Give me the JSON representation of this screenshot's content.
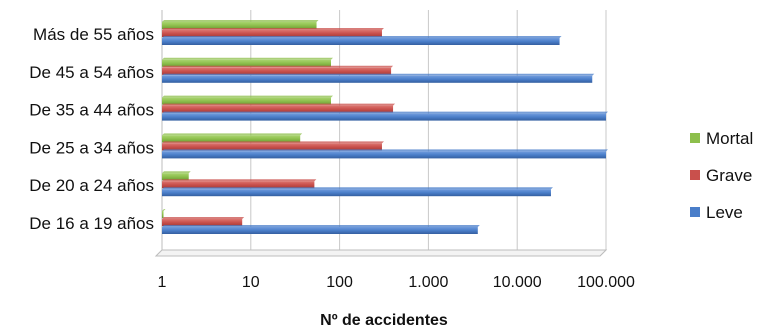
{
  "chart_data": {
    "type": "bar",
    "orientation": "horizontal",
    "x_scale": "log",
    "xlabel": "Nº de accidentes",
    "xlim": [
      1,
      100000
    ],
    "x_ticks": [
      {
        "value": 1,
        "label": "1"
      },
      {
        "value": 10,
        "label": "10"
      },
      {
        "value": 100,
        "label": "100"
      },
      {
        "value": 1000,
        "label": "1.000"
      },
      {
        "value": 10000,
        "label": "10.000"
      },
      {
        "value": 100000,
        "label": "100.000"
      }
    ],
    "categories": [
      "De 16 a 19 años",
      "De 20 a 24 años",
      "De 25 a 34 años",
      "De 35 a 44 años",
      "De 45 a 54 años",
      "Más de 55 años"
    ],
    "series": [
      {
        "name": "Leve",
        "color": "#4A7EC9",
        "values": [
          3600,
          24000,
          100000,
          100000,
          70000,
          30000
        ]
      },
      {
        "name": "Grave",
        "color": "#C9504C",
        "values": [
          8,
          52,
          300,
          400,
          380,
          300
        ]
      },
      {
        "name": "Mortal",
        "color": "#8DBF4C",
        "values": [
          1,
          2,
          36,
          80,
          80,
          55
        ]
      }
    ],
    "legend_position": "right",
    "grid": true
  }
}
